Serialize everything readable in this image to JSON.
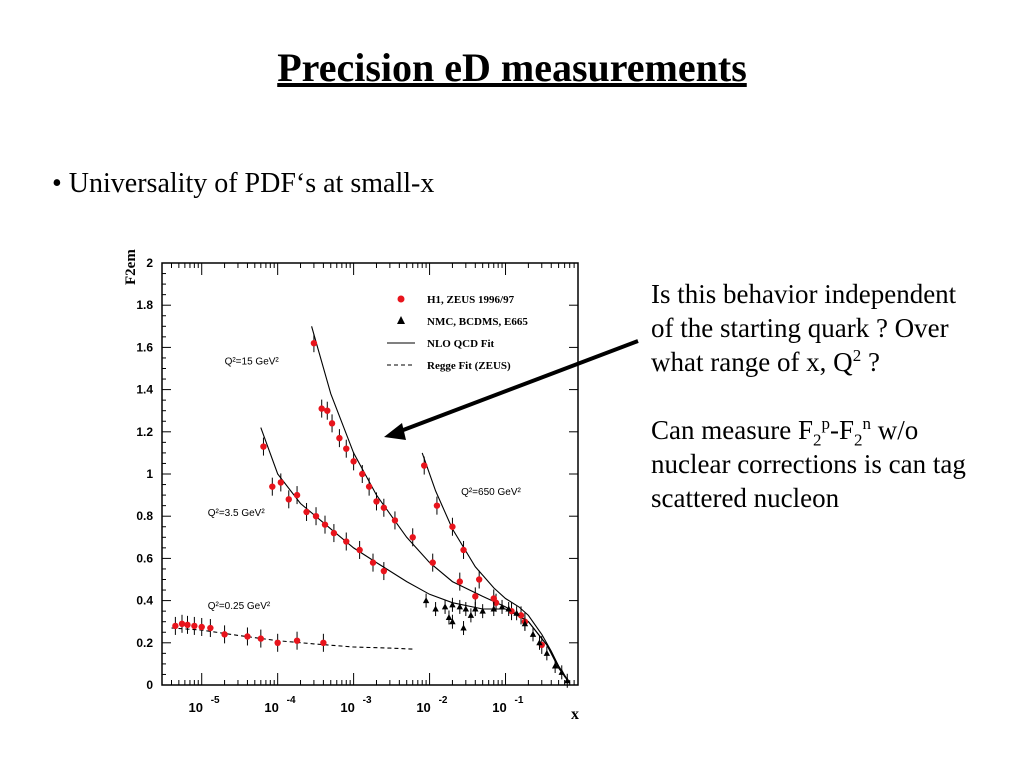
{
  "slide": {
    "title": "Precision eD measurements",
    "bullet": "• Universality of PDF‘s at small-x",
    "side_text_1": {
      "a": "Is this behavior independent of the starting quark ?  Over what range of x, Q",
      "sup": "2",
      "b": " ?"
    },
    "side_text_2": {
      "a": "Can measure F",
      "sub1": "2",
      "sup1": "p",
      "b": "-F",
      "sub2": "2",
      "sup2": "n",
      "c": " w/o nuclear corrections is can tag scattered nucleon"
    }
  },
  "colors": {
    "h1_zeus": "#e8141c",
    "other": "#000000",
    "axis": "#000000"
  },
  "chart_data": {
    "type": "scatter",
    "xlabel": "x",
    "ylabel": "F2em",
    "xscale": "log",
    "xlim": [
      3e-06,
      0.9
    ],
    "ylim": [
      0,
      2
    ],
    "y_ticks": [
      "0",
      "0.2",
      "0.4",
      "0.6",
      "0.8",
      "1",
      "1.2",
      "1.4",
      "1.6",
      "1.8",
      "2"
    ],
    "x_ticks": [
      {
        "v": 1e-05,
        "base": "10",
        "exp": "-5"
      },
      {
        "v": 0.0001,
        "base": "10",
        "exp": "-4"
      },
      {
        "v": 0.001,
        "base": "10",
        "exp": "-3"
      },
      {
        "v": 0.01,
        "base": "10",
        "exp": "-2"
      },
      {
        "v": 0.1,
        "base": "10",
        "exp": "-1"
      }
    ],
    "legend": {
      "position": "top-right",
      "entries": [
        {
          "marker": "dot",
          "label": "H1, ZEUS 1996/97"
        },
        {
          "marker": "triangle",
          "label": "NMC, BCDMS, E665"
        },
        {
          "marker": "solid",
          "label": "NLO QCD Fit"
        },
        {
          "marker": "dashed",
          "label": "Regge Fit (ZEUS)"
        }
      ]
    },
    "annotations": [
      {
        "label": "Q²=15 GeV²",
        "x": 2e-05,
        "y": 1.52
      },
      {
        "label": "Q²=3.5 GeV²",
        "x": 1.2e-05,
        "y": 0.8
      },
      {
        "label": "Q²=650 GeV²",
        "x": 0.026,
        "y": 0.9
      },
      {
        "label": "Q²=0.25 GeV²",
        "x": 1.2e-05,
        "y": 0.36
      }
    ],
    "series": [
      {
        "name": "H1, ZEUS 1996/97",
        "marker": "dot",
        "points": [
          {
            "x": 0.0003,
            "y": 1.62
          },
          {
            "x": 0.00038,
            "y": 1.31
          },
          {
            "x": 0.00045,
            "y": 1.3
          },
          {
            "x": 0.00052,
            "y": 1.24
          },
          {
            "x": 0.00065,
            "y": 1.17
          },
          {
            "x": 0.0008,
            "y": 1.12
          },
          {
            "x": 0.001,
            "y": 1.06
          },
          {
            "x": 0.0013,
            "y": 1.0
          },
          {
            "x": 0.0016,
            "y": 0.94
          },
          {
            "x": 0.002,
            "y": 0.87
          },
          {
            "x": 0.0025,
            "y": 0.84
          },
          {
            "x": 0.0035,
            "y": 0.78
          },
          {
            "x": 0.006,
            "y": 0.7
          },
          {
            "x": 0.011,
            "y": 0.58
          },
          {
            "x": 0.025,
            "y": 0.49
          },
          {
            "x": 0.04,
            "y": 0.42
          },
          {
            "x": 0.075,
            "y": 0.39
          },
          {
            "x": 0.12,
            "y": 0.35
          },
          {
            "x": 0.18,
            "y": 0.3
          },
          {
            "x": 6.5e-05,
            "y": 1.13
          },
          {
            "x": 8.5e-05,
            "y": 0.94
          },
          {
            "x": 0.00011,
            "y": 0.96
          },
          {
            "x": 0.00014,
            "y": 0.88
          },
          {
            "x": 0.00018,
            "y": 0.9
          },
          {
            "x": 0.00024,
            "y": 0.82
          },
          {
            "x": 0.00032,
            "y": 0.8
          },
          {
            "x": 0.00042,
            "y": 0.76
          },
          {
            "x": 0.00055,
            "y": 0.72
          },
          {
            "x": 0.0008,
            "y": 0.68
          },
          {
            "x": 0.0012,
            "y": 0.64
          },
          {
            "x": 0.0018,
            "y": 0.58
          },
          {
            "x": 0.0025,
            "y": 0.54
          },
          {
            "x": 0.0085,
            "y": 1.04
          },
          {
            "x": 0.0125,
            "y": 0.85
          },
          {
            "x": 0.02,
            "y": 0.75
          },
          {
            "x": 0.028,
            "y": 0.64
          },
          {
            "x": 0.045,
            "y": 0.5
          },
          {
            "x": 0.07,
            "y": 0.41
          },
          {
            "x": 0.16,
            "y": 0.33
          },
          {
            "x": 0.3,
            "y": 0.19
          },
          {
            "x": 4.5e-06,
            "y": 0.28
          },
          {
            "x": 5.5e-06,
            "y": 0.29
          },
          {
            "x": 6.5e-06,
            "y": 0.285
          },
          {
            "x": 8e-06,
            "y": 0.28
          },
          {
            "x": 1e-05,
            "y": 0.275
          },
          {
            "x": 1.3e-05,
            "y": 0.27
          },
          {
            "x": 2e-05,
            "y": 0.24
          },
          {
            "x": 4e-05,
            "y": 0.23
          },
          {
            "x": 6e-05,
            "y": 0.22
          },
          {
            "x": 0.0001,
            "y": 0.2
          },
          {
            "x": 0.00018,
            "y": 0.21
          },
          {
            "x": 0.0004,
            "y": 0.2
          }
        ]
      },
      {
        "name": "NMC, BCDMS, E665",
        "marker": "triangle",
        "points": [
          {
            "x": 0.009,
            "y": 0.4
          },
          {
            "x": 0.012,
            "y": 0.36
          },
          {
            "x": 0.016,
            "y": 0.37
          },
          {
            "x": 0.02,
            "y": 0.38
          },
          {
            "x": 0.025,
            "y": 0.37
          },
          {
            "x": 0.03,
            "y": 0.36
          },
          {
            "x": 0.04,
            "y": 0.36
          },
          {
            "x": 0.05,
            "y": 0.35
          },
          {
            "x": 0.07,
            "y": 0.36
          },
          {
            "x": 0.09,
            "y": 0.37
          },
          {
            "x": 0.11,
            "y": 0.36
          },
          {
            "x": 0.14,
            "y": 0.34
          },
          {
            "x": 0.18,
            "y": 0.29
          },
          {
            "x": 0.23,
            "y": 0.24
          },
          {
            "x": 0.28,
            "y": 0.2
          },
          {
            "x": 0.35,
            "y": 0.15
          },
          {
            "x": 0.45,
            "y": 0.09
          },
          {
            "x": 0.55,
            "y": 0.06
          },
          {
            "x": 0.65,
            "y": 0.02
          },
          {
            "x": 0.018,
            "y": 0.32
          },
          {
            "x": 0.02,
            "y": 0.3
          },
          {
            "x": 0.028,
            "y": 0.27
          },
          {
            "x": 0.035,
            "y": 0.33
          }
        ]
      }
    ],
    "curves": [
      {
        "name": "NLO QCD Fit",
        "q2": "15",
        "style": "solid",
        "points": [
          {
            "x": 0.00028,
            "y": 1.7
          },
          {
            "x": 0.0005,
            "y": 1.38
          },
          {
            "x": 0.001,
            "y": 1.1
          },
          {
            "x": 0.002,
            "y": 0.9
          },
          {
            "x": 0.005,
            "y": 0.7
          },
          {
            "x": 0.01,
            "y": 0.58
          },
          {
            "x": 0.02,
            "y": 0.49
          },
          {
            "x": 0.05,
            "y": 0.42
          },
          {
            "x": 0.1,
            "y": 0.37
          },
          {
            "x": 0.2,
            "y": 0.3
          },
          {
            "x": 0.35,
            "y": 0.19
          },
          {
            "x": 0.5,
            "y": 0.08
          },
          {
            "x": 0.7,
            "y": 0.01
          }
        ]
      },
      {
        "name": "NLO QCD Fit",
        "q2": "3.5",
        "style": "solid",
        "points": [
          {
            "x": 6e-05,
            "y": 1.22
          },
          {
            "x": 0.0001,
            "y": 1.0
          },
          {
            "x": 0.0002,
            "y": 0.86
          },
          {
            "x": 0.0005,
            "y": 0.74
          },
          {
            "x": 0.001,
            "y": 0.65
          },
          {
            "x": 0.002,
            "y": 0.58
          },
          {
            "x": 0.005,
            "y": 0.49
          },
          {
            "x": 0.01,
            "y": 0.43
          },
          {
            "x": 0.02,
            "y": 0.39
          },
          {
            "x": 0.05,
            "y": 0.36
          },
          {
            "x": 0.1,
            "y": 0.36
          },
          {
            "x": 0.2,
            "y": 0.3
          },
          {
            "x": 0.35,
            "y": 0.19
          },
          {
            "x": 0.5,
            "y": 0.09
          },
          {
            "x": 0.7,
            "y": 0.01
          }
        ]
      },
      {
        "name": "NLO QCD Fit",
        "q2": "650",
        "style": "solid",
        "points": [
          {
            "x": 0.008,
            "y": 1.1
          },
          {
            "x": 0.012,
            "y": 0.92
          },
          {
            "x": 0.02,
            "y": 0.74
          },
          {
            "x": 0.04,
            "y": 0.56
          },
          {
            "x": 0.07,
            "y": 0.46
          },
          {
            "x": 0.1,
            "y": 0.41
          },
          {
            "x": 0.15,
            "y": 0.37
          },
          {
            "x": 0.2,
            "y": 0.33
          },
          {
            "x": 0.3,
            "y": 0.24
          },
          {
            "x": 0.4,
            "y": 0.16
          },
          {
            "x": 0.5,
            "y": 0.09
          },
          {
            "x": 0.6,
            "y": 0.04
          },
          {
            "x": 0.7,
            "y": 0.01
          }
        ]
      },
      {
        "name": "Regge Fit (ZEUS)",
        "q2": "0.25",
        "style": "dashed",
        "points": [
          {
            "x": 4e-06,
            "y": 0.27
          },
          {
            "x": 1e-05,
            "y": 0.26
          },
          {
            "x": 3e-05,
            "y": 0.235
          },
          {
            "x": 0.0001,
            "y": 0.21
          },
          {
            "x": 0.0003,
            "y": 0.195
          },
          {
            "x": 0.001,
            "y": 0.18
          },
          {
            "x": 0.003,
            "y": 0.175
          },
          {
            "x": 0.006,
            "y": 0.17
          }
        ]
      }
    ]
  }
}
